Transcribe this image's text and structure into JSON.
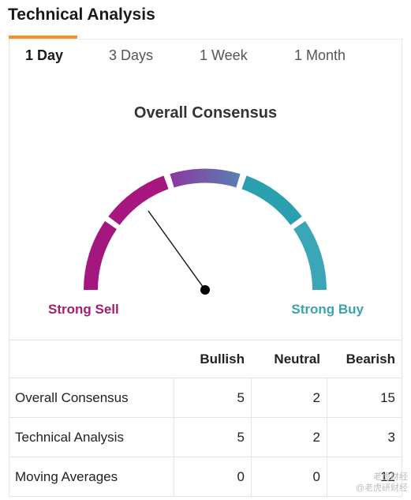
{
  "header": {
    "title": "Technical Analysis",
    "accent_color": "#f7931e"
  },
  "tabs": [
    {
      "label": "1 Day",
      "active": true
    },
    {
      "label": "3 Days",
      "active": false
    },
    {
      "label": "1 Week",
      "active": false
    },
    {
      "label": "1 Month",
      "active": false
    }
  ],
  "gauge": {
    "title": "Overall Consensus",
    "left_label": "Strong Sell",
    "right_label": "Strong Buy",
    "sell_color": "#a0206f",
    "neutral_color": "#7d4a9e",
    "buy_color": "#2aa3ac",
    "reading_segment": "Sell"
  },
  "table": {
    "columns": [
      "",
      "Bullish",
      "Neutral",
      "Bearish"
    ],
    "rows": [
      {
        "label": "Overall Consensus",
        "bullish": "5",
        "neutral": "2",
        "bearish": "15"
      },
      {
        "label": "Technical Analysis",
        "bullish": "5",
        "neutral": "2",
        "bearish": "3"
      },
      {
        "label": "Moving Averages",
        "bullish": "0",
        "neutral": "0",
        "bearish": "12"
      }
    ]
  },
  "watermark": {
    "line1": "老虎财经",
    "line2": "@老虎研财经"
  }
}
